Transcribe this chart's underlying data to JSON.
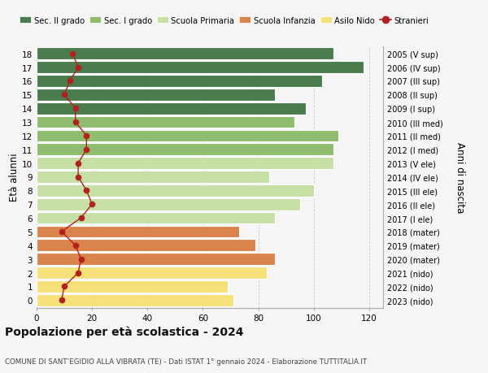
{
  "ages": [
    18,
    17,
    16,
    15,
    14,
    13,
    12,
    11,
    10,
    9,
    8,
    7,
    6,
    5,
    4,
    3,
    2,
    1,
    0
  ],
  "anni_nascita": [
    "2005 (V sup)",
    "2006 (IV sup)",
    "2007 (III sup)",
    "2008 (II sup)",
    "2009 (I sup)",
    "2010 (III med)",
    "2011 (II med)",
    "2012 (I med)",
    "2013 (V ele)",
    "2014 (IV ele)",
    "2015 (III ele)",
    "2016 (II ele)",
    "2017 (I ele)",
    "2018 (mater)",
    "2019 (mater)",
    "2020 (mater)",
    "2021 (nido)",
    "2022 (nido)",
    "2023 (nido)"
  ],
  "bar_values": [
    107,
    118,
    103,
    86,
    97,
    93,
    109,
    107,
    107,
    84,
    100,
    95,
    86,
    73,
    79,
    86,
    83,
    69,
    71
  ],
  "stranieri": [
    13,
    15,
    12,
    10,
    14,
    14,
    18,
    18,
    15,
    15,
    18,
    20,
    16,
    9,
    14,
    16,
    15,
    10,
    9
  ],
  "bar_colors": [
    "#4a7c4e",
    "#4a7c4e",
    "#4a7c4e",
    "#4a7c4e",
    "#4a7c4e",
    "#8fbc6e",
    "#8fbc6e",
    "#8fbc6e",
    "#c5dfa5",
    "#c5dfa5",
    "#c5dfa5",
    "#c5dfa5",
    "#c5dfa5",
    "#d9844a",
    "#d9844a",
    "#d9844a",
    "#f5e07a",
    "#f5e07a",
    "#f5e07a"
  ],
  "legend_labels": [
    "Sec. II grado",
    "Sec. I grado",
    "Scuola Primaria",
    "Scuola Infanzia",
    "Asilo Nido",
    "Stranieri"
  ],
  "legend_colors": [
    "#4a7c4e",
    "#8fbc6e",
    "#c5dfa5",
    "#d9844a",
    "#f5e07a",
    "#b22020"
  ],
  "stranieri_color": "#b22020",
  "ylabel_left": "Età alunni",
  "ylabel_right": "Anni di nascita",
  "title": "Popolazione per età scolastica - 2024",
  "subtitle": "COMUNE DI SANT’EGIDIO ALLA VIBRATA (TE) - Dati ISTAT 1° gennaio 2024 - Elaborazione TUTTITALIA.IT",
  "background_color": "#f5f5f5",
  "grid_color": "#cccccc"
}
